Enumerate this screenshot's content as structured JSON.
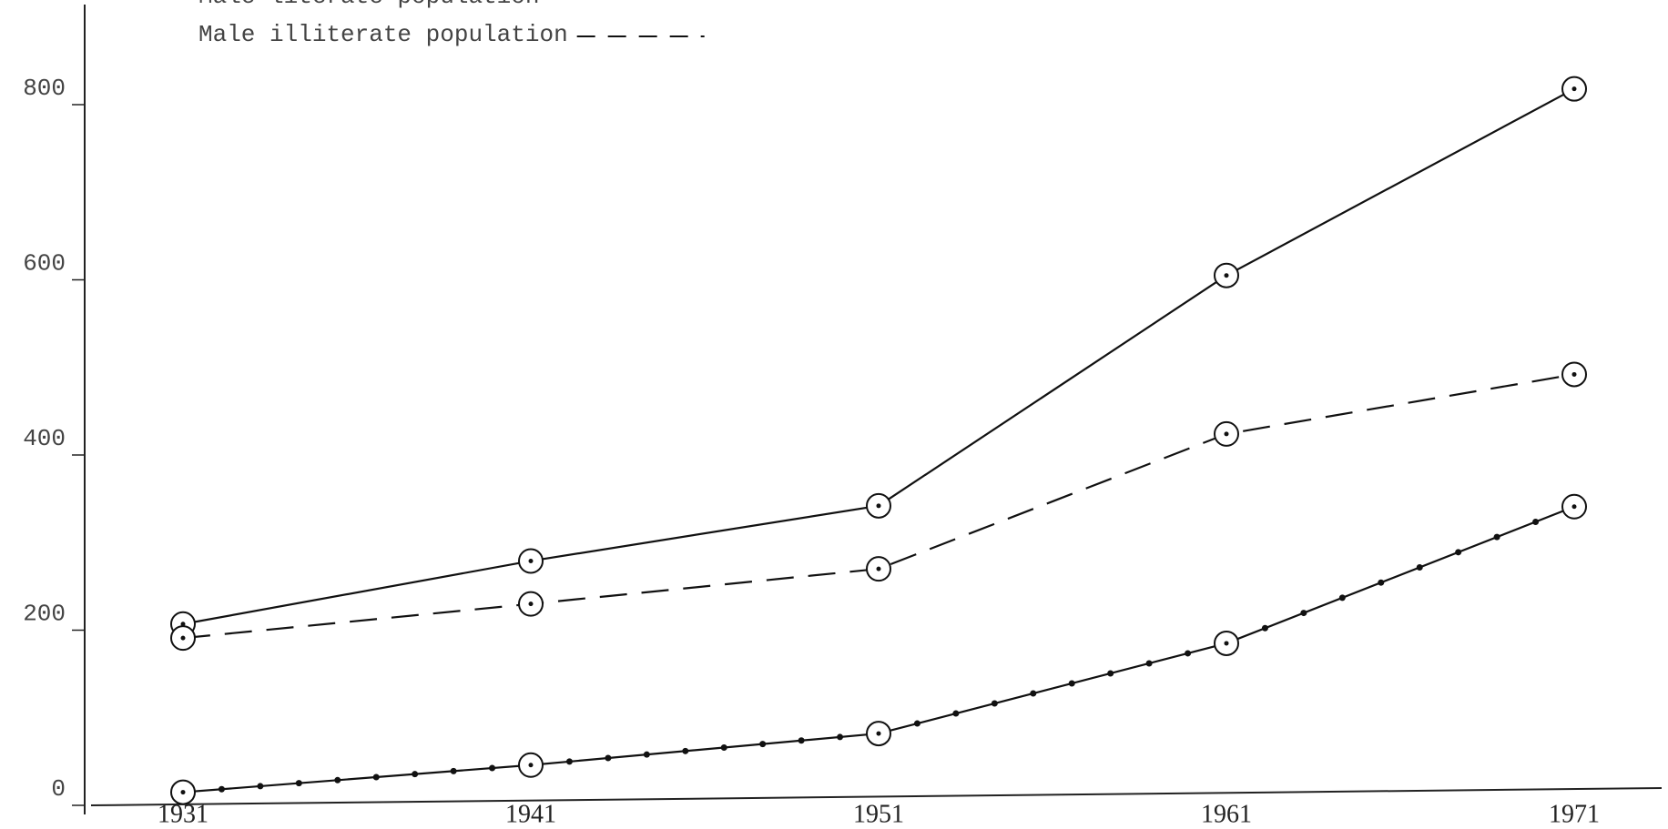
{
  "chart_data": {
    "type": "line",
    "legend_texts": [
      "Male literate population",
      "Male illiterate population"
    ],
    "categories": [
      "1931",
      "1941",
      "1951",
      "1961",
      "1971"
    ],
    "series": [
      {
        "color": "#111",
        "dash": "solid",
        "values": [
          207,
          279,
          342,
          605,
          818
        ]
      },
      {
        "name": "Male illiterate population",
        "color": "#111",
        "dash": "dashed",
        "values": [
          191,
          230,
          270,
          424,
          492
        ]
      },
      {
        "name": "Male literate population",
        "color": "#111",
        "dash": "dotted",
        "values": [
          15,
          46,
          82,
          185,
          341
        ]
      }
    ],
    "ylim": [
      0,
      900
    ],
    "yticks": [
      0,
      200,
      400,
      600,
      800
    ],
    "grid": false
  }
}
